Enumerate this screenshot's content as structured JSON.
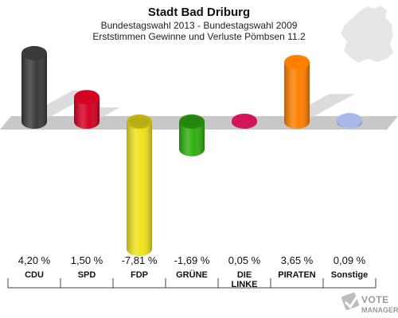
{
  "chart_data": {
    "type": "bar",
    "title": "Stadt Bad Driburg",
    "subtitle_lines": [
      "Bundestagswahl 2013 - Bundestagswahl 2009",
      "Erststimmen Gewinne und Verluste Pömbsen 11.2"
    ],
    "categories": [
      [
        "CDU"
      ],
      [
        "SPD"
      ],
      [
        "FDP"
      ],
      [
        "GRÜNE"
      ],
      [
        "DIE",
        "LINKE"
      ],
      [
        "PIRATEN"
      ],
      [
        "Sonstige"
      ]
    ],
    "values": [
      4.2,
      1.5,
      -7.81,
      -1.69,
      0.05,
      3.65,
      0.09
    ],
    "value_labels": [
      "4,20 %",
      "1,50 %",
      "-7,81 %",
      "-1,69 %",
      "0,05 %",
      "3,65 %",
      "0,09 %"
    ],
    "colors": [
      "#3a3a3a",
      "#d40022",
      "#f0e21c",
      "#2fae10",
      "#d4145a",
      "#ff7f00",
      "#a8b8e8"
    ],
    "ylim": [
      -8.5,
      5
    ],
    "grid": false,
    "legend": "none"
  },
  "watermark": {
    "logo_text": "VOTE",
    "logo_subtext": "MANAGER",
    "logo_icon": "ballot-check-icon",
    "map_icon": "germany-map-icon"
  }
}
